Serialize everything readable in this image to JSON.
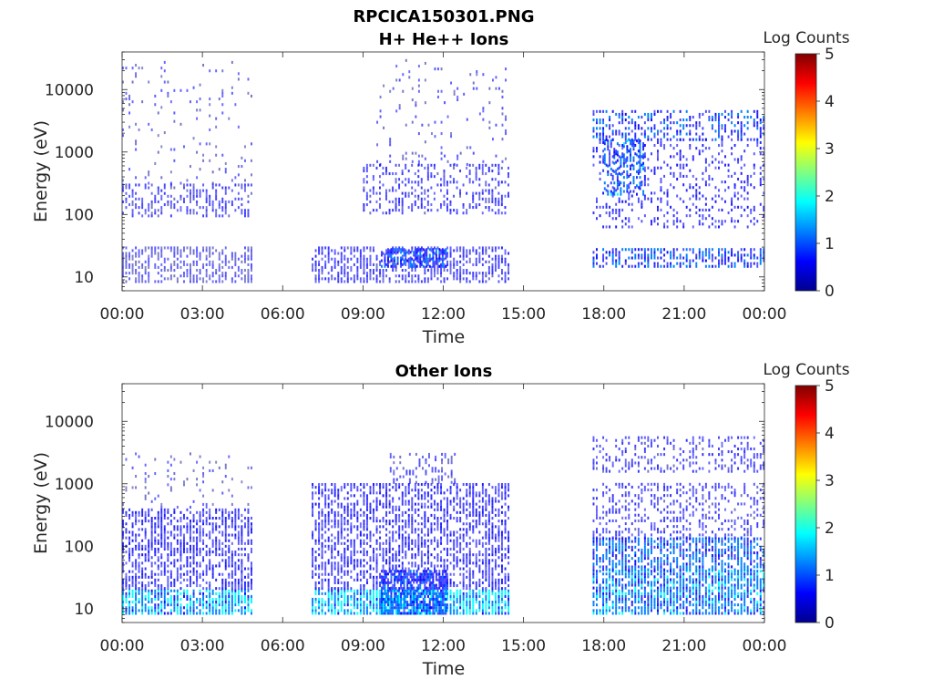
{
  "figure": {
    "title_line1": "RPCICA150301.PNG"
  },
  "colormap": [
    "#00008f",
    "#0000ff",
    "#0080ff",
    "#00ffff",
    "#80ff80",
    "#ffff00",
    "#ff8000",
    "#ff0000",
    "#800000"
  ],
  "chart_data": [
    {
      "type": "heatmap",
      "title": "H+ He++ Ions",
      "xlabel": "Time",
      "ylabel": "Energy (eV)",
      "x_scale": "time",
      "y_scale": "log",
      "xlim": [
        "00:00",
        "00:00 (+1 day)"
      ],
      "ylim": [
        6,
        40000
      ],
      "xticks": [
        "00:00",
        "03:00",
        "06:00",
        "09:00",
        "12:00",
        "15:00",
        "18:00",
        "21:00",
        "00:00"
      ],
      "yticks": [
        "10",
        "100",
        "1000",
        "10000"
      ],
      "colorbar": {
        "label": "Log Counts",
        "range": [
          0,
          5
        ],
        "ticks": [
          "0",
          "1",
          "2",
          "3",
          "4",
          "5"
        ]
      },
      "data_coverage": [
        {
          "start": "00:00",
          "end": "04:50"
        },
        {
          "start": "07:05",
          "end": "14:25"
        },
        {
          "start": "17:35",
          "end": "00:00"
        }
      ],
      "features": [
        {
          "start": "00:00",
          "end": "04:50",
          "emin": 90,
          "emax": 300,
          "level": 0.45,
          "density": 0.45
        },
        {
          "start": "00:00",
          "end": "04:50",
          "emin": 8,
          "emax": 28,
          "level": 0.35,
          "density": 0.55
        },
        {
          "start": "00:00",
          "end": "04:50",
          "emin": 300,
          "emax": 28000,
          "level": 0.3,
          "density": 0.08
        },
        {
          "start": "07:05",
          "end": "14:25",
          "emin": 8,
          "emax": 28,
          "level": 0.5,
          "density": 0.6
        },
        {
          "start": "09:40",
          "end": "12:10",
          "emin": 14,
          "emax": 28,
          "level": 0.9,
          "density": 0.8
        },
        {
          "start": "09:00",
          "end": "14:25",
          "emin": 100,
          "emax": 600,
          "level": 0.5,
          "density": 0.35
        },
        {
          "start": "09:30",
          "end": "14:25",
          "emin": 600,
          "emax": 28000,
          "level": 0.35,
          "density": 0.08
        },
        {
          "start": "17:35",
          "end": "00:00",
          "emin": 14,
          "emax": 28,
          "level": 0.85,
          "density": 0.6
        },
        {
          "start": "17:35",
          "end": "00:00",
          "emin": 1500,
          "emax": 4500,
          "level": 0.8,
          "density": 0.45
        },
        {
          "start": "18:00",
          "end": "19:30",
          "emin": 200,
          "emax": 1500,
          "level": 1.1,
          "density": 0.55
        },
        {
          "start": "17:35",
          "end": "00:00",
          "emin": 60,
          "emax": 1500,
          "level": 0.6,
          "density": 0.25
        }
      ]
    },
    {
      "type": "heatmap",
      "title": "Other Ions",
      "xlabel": "Time",
      "ylabel": "Energy (eV)",
      "x_scale": "time",
      "y_scale": "log",
      "xlim": [
        "00:00",
        "00:00 (+1 day)"
      ],
      "ylim": [
        6,
        40000
      ],
      "xticks": [
        "00:00",
        "03:00",
        "06:00",
        "09:00",
        "12:00",
        "15:00",
        "18:00",
        "21:00",
        "00:00"
      ],
      "yticks": [
        "10",
        "100",
        "1000",
        "10000"
      ],
      "colorbar": {
        "label": "Log Counts",
        "range": [
          0,
          5
        ],
        "ticks": [
          "0",
          "1",
          "2",
          "3",
          "4",
          "5"
        ]
      },
      "data_coverage": [
        {
          "start": "00:00",
          "end": "04:50"
        },
        {
          "start": "07:05",
          "end": "14:25"
        },
        {
          "start": "17:35",
          "end": "00:00"
        }
      ],
      "features": [
        {
          "start": "00:00",
          "end": "04:50",
          "emin": 8,
          "emax": 20,
          "level": 1.4,
          "density": 0.85
        },
        {
          "start": "00:00",
          "end": "04:50",
          "emin": 20,
          "emax": 400,
          "level": 0.6,
          "density": 0.6
        },
        {
          "start": "00:00",
          "end": "04:50",
          "emin": 400,
          "emax": 3000,
          "level": 0.3,
          "density": 0.12
        },
        {
          "start": "07:05",
          "end": "14:25",
          "emin": 8,
          "emax": 20,
          "level": 1.5,
          "density": 0.85
        },
        {
          "start": "09:40",
          "end": "12:10",
          "emin": 8,
          "emax": 40,
          "level": 0.8,
          "density": 0.85
        },
        {
          "start": "07:05",
          "end": "14:25",
          "emin": 20,
          "emax": 1000,
          "level": 0.6,
          "density": 0.6
        },
        {
          "start": "10:00",
          "end": "12:30",
          "emin": 1000,
          "emax": 3000,
          "level": 0.4,
          "density": 0.3
        },
        {
          "start": "17:35",
          "end": "00:00",
          "emin": 8,
          "emax": 40,
          "level": 1.2,
          "density": 0.8
        },
        {
          "start": "17:35",
          "end": "00:00",
          "emin": 40,
          "emax": 130,
          "level": 1.0,
          "density": 0.7
        },
        {
          "start": "17:35",
          "end": "00:00",
          "emin": 130,
          "emax": 1000,
          "level": 0.5,
          "density": 0.35
        },
        {
          "start": "17:35",
          "end": "00:00",
          "emin": 1500,
          "emax": 5500,
          "level": 0.5,
          "density": 0.35
        }
      ]
    }
  ]
}
